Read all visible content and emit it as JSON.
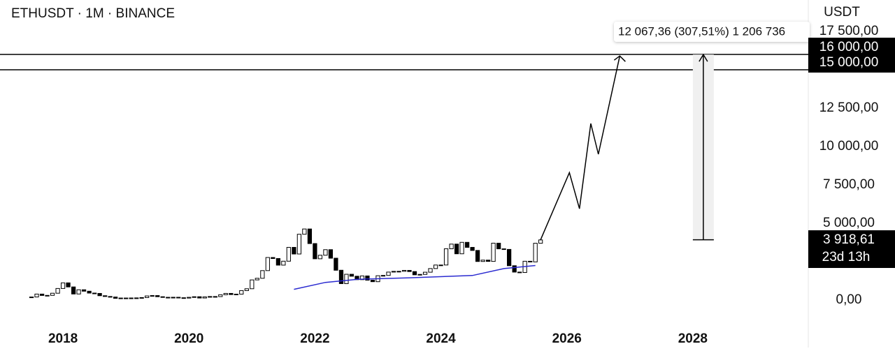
{
  "chart_data": {
    "type": "candlestick",
    "title": "ETHUSDT · 1M · BINANCE",
    "currency": "USDT",
    "xlim": [
      2017.0,
      2029.833
    ],
    "ylim": [
      -3091,
      19545
    ],
    "xticks": [
      2018,
      2020,
      2022,
      2024,
      2026,
      2028
    ],
    "yticks": [
      {
        "value": 0,
        "label": "0,00"
      },
      {
        "value": 5000,
        "label": "5 000,00"
      },
      {
        "value": 7500,
        "label": "7 500,00"
      },
      {
        "value": 10000,
        "label": "10 000,00"
      },
      {
        "value": 12500,
        "label": "12 500,00"
      },
      {
        "value": 17500,
        "label": "17 500,00"
      }
    ],
    "candles": {
      "up_color": "#ffffff",
      "down_color": "#000000",
      "x": [
        2017.5,
        2017.583,
        2017.667,
        2017.75,
        2017.833,
        2017.917,
        2018,
        2018.083,
        2018.167,
        2018.25,
        2018.333,
        2018.417,
        2018.5,
        2018.583,
        2018.667,
        2018.75,
        2018.833,
        2018.917,
        2019,
        2019.083,
        2019.167,
        2019.25,
        2019.333,
        2019.417,
        2019.5,
        2019.583,
        2019.667,
        2019.75,
        2019.833,
        2019.917,
        2020,
        2020.083,
        2020.167,
        2020.25,
        2020.333,
        2020.417,
        2020.5,
        2020.583,
        2020.667,
        2020.75,
        2020.833,
        2020.917,
        2021,
        2021.083,
        2021.167,
        2021.25,
        2021.333,
        2021.417,
        2021.5,
        2021.583,
        2021.667,
        2021.75,
        2021.833,
        2021.917,
        2022,
        2022.083,
        2022.167,
        2022.25,
        2022.333,
        2022.417,
        2022.5,
        2022.583,
        2022.667,
        2022.75,
        2022.833,
        2022.917,
        2023,
        2023.083,
        2023.167,
        2023.25,
        2023.333,
        2023.417,
        2023.5,
        2023.583,
        2023.667,
        2023.75,
        2023.833,
        2023.917,
        2024,
        2024.083,
        2024.167,
        2024.25,
        2024.333,
        2024.417,
        2024.5,
        2024.583,
        2024.667,
        2024.75,
        2024.833,
        2024.917,
        2025,
        2025.083,
        2025.167,
        2025.25,
        2025.333,
        2025.417,
        2025.5,
        2025.583
      ],
      "close": [
        200,
        390,
        300,
        305,
        445,
        755,
        1120,
        855,
        395,
        670,
        577,
        455,
        433,
        283,
        233,
        198,
        113,
        133,
        107,
        136,
        141,
        162,
        268,
        293,
        218,
        172,
        180,
        182,
        152,
        129,
        179,
        217,
        133,
        206,
        231,
        225,
        345,
        434,
        359,
        386,
        616,
        737,
        1312,
        1418,
        1918,
        2772,
        2706,
        2275,
        2532,
        3433,
        3000,
        4287,
        4630,
        3680,
        2688,
        2920,
        3282,
        2727,
        1942,
        1070,
        1680,
        1553,
        1328,
        1572,
        1295,
        1196,
        1585,
        1605,
        1822,
        1870,
        1873,
        1933,
        1856,
        1645,
        1671,
        1814,
        2052,
        2282,
        2283,
        3340,
        3645,
        3013,
        3760,
        3433,
        3232,
        2513,
        2602,
        2518,
        3706,
        3337,
        3300,
        2237,
        1822,
        1794,
        2528,
        2486,
        3700,
        3918.61
      ]
    },
    "moving_average": {
      "color": "#2a2ad0",
      "x": [
        2021.667,
        2022.167,
        2022.667,
        2023.5,
        2024.5,
        2025.0,
        2025.5
      ],
      "values": [
        700,
        1150,
        1350,
        1450,
        1600,
        2050,
        2250
      ]
    },
    "projection": {
      "x": [
        2025.58,
        2026.04,
        2026.2,
        2026.38,
        2026.5,
        2026.84
      ],
      "values": [
        3900,
        8300,
        5950,
        11500,
        9500,
        15900
      ]
    },
    "levels": [
      {
        "value": 16000,
        "label": "16 000,00"
      },
      {
        "value": 15000,
        "label": "15 000,00"
      }
    ],
    "price_label": "3 918,61",
    "countdown": "23d 13h",
    "measure": {
      "x": [
        2028.0,
        2028.333
      ],
      "from": 3924.22,
      "to": 15991.58,
      "label": "12 067,36 (307,51%) 1 206 736"
    }
  }
}
